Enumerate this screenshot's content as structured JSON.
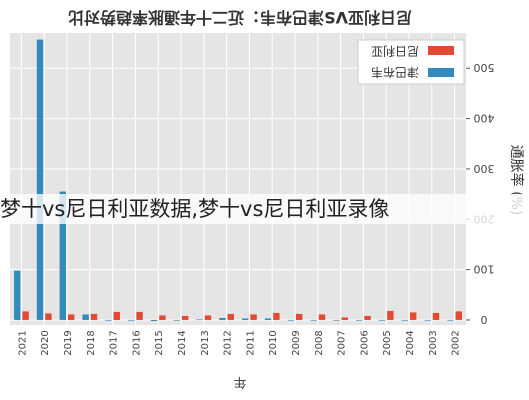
{
  "caption": "梦十vs尼日利亚数据,梦十vs尼日利亚录像",
  "chart_data": {
    "type": "bar",
    "title": "尼日利亚VS津巴布韦：近二十年通胀率趋势对比",
    "xlabel": "年",
    "ylabel": "通胀率 (%)",
    "ylim": [
      -10,
      570
    ],
    "yticks": [
      0,
      100,
      200,
      300,
      400,
      500
    ],
    "grid": true,
    "legend_position": "top-right",
    "categories": [
      "2021",
      "2020",
      "2019",
      "2018",
      "2017",
      "2016",
      "2015",
      "2014",
      "2013",
      "2012",
      "2011",
      "2010",
      "2009",
      "2008",
      "2007",
      "2006",
      "2005",
      "2004",
      "2003",
      "2002"
    ],
    "series": [
      {
        "name": "尼日利亚",
        "color": "#e24a33",
        "values": [
          17,
          13,
          11,
          12,
          16,
          16,
          9,
          8,
          9,
          12,
          11,
          14,
          12,
          11,
          5,
          8,
          18,
          15,
          14,
          17
        ]
      },
      {
        "name": "津巴布韦",
        "color": "#348abd",
        "values": [
          98,
          557,
          255,
          11,
          0,
          0,
          -2,
          0,
          1,
          4,
          3,
          3,
          0,
          0,
          0,
          0,
          0,
          0,
          0,
          0
        ]
      }
    ]
  }
}
